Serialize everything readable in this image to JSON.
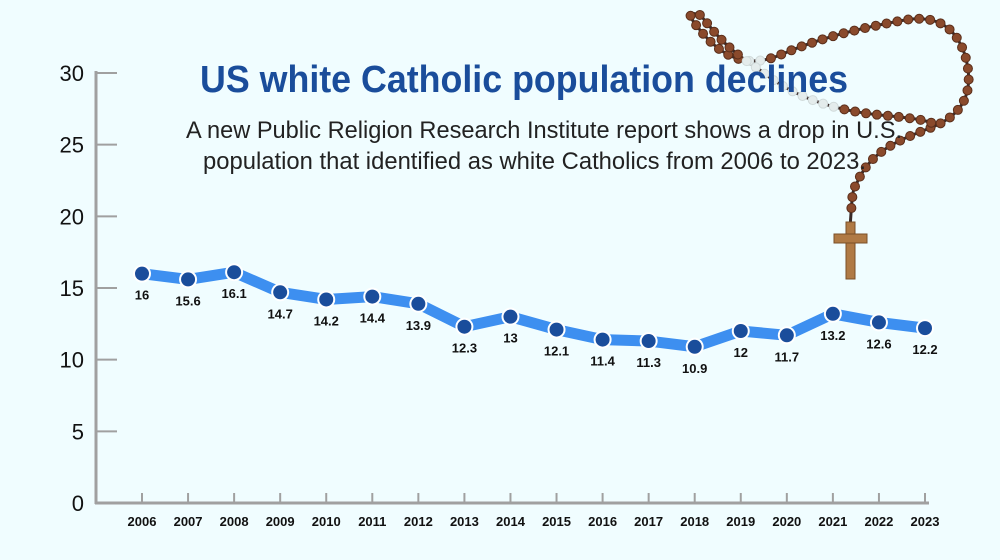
{
  "chart_data": {
    "type": "line",
    "title": "US white Catholic population declines",
    "subtitle_lines": [
      "A new Public Religion Research Institute report shows a drop in U.S.",
      "population that identified as white Catholics from 2006 to 2023."
    ],
    "xlabel": "",
    "ylabel": "",
    "x": [
      "2006",
      "2007",
      "2008",
      "2009",
      "2010",
      "2011",
      "2012",
      "2013",
      "2014",
      "2015",
      "2016",
      "2017",
      "2018",
      "2019",
      "2020",
      "2021",
      "2022",
      "2023"
    ],
    "values": [
      16,
      15.6,
      16.1,
      14.7,
      14.2,
      14.4,
      13.9,
      12.3,
      13,
      12.1,
      11.4,
      11.3,
      10.9,
      12,
      11.7,
      13.2,
      12.6,
      12.2
    ],
    "data_labels": [
      "16",
      "15.6",
      "16.1",
      "14.7",
      "14.2",
      "14.4",
      "13.9",
      "12.3",
      "13",
      "12.1",
      "11.4",
      "11.3",
      "10.9",
      "12",
      "11.7",
      "13.2",
      "12.6",
      "12.2"
    ],
    "ylim": [
      0,
      30
    ],
    "yticks": [
      "0",
      "5",
      "10",
      "15",
      "20",
      "25",
      "30"
    ],
    "grid": false,
    "legend": "none",
    "colors": {
      "line": "#3d8ff0",
      "marker": "#1a4d9b",
      "title": "#1a4d9b",
      "axis": "#a0a0a0",
      "background": "#f0fdff"
    },
    "decoration": "rosary-image"
  }
}
